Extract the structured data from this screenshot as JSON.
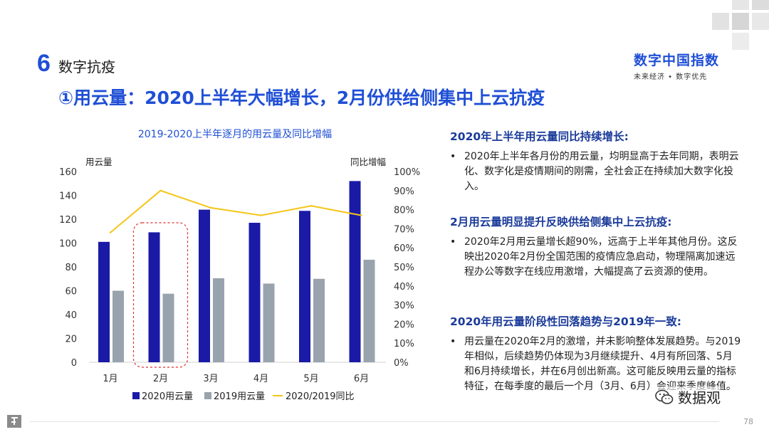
{
  "header": {
    "section_number": "6",
    "section_name": "数字抗疫",
    "main_title": "①用云量：2020上半年大幅增长，2月份供给侧集中上云抗疫"
  },
  "brand": {
    "title": "数字中国指数",
    "subtitle": "未来经济 • 数字优先"
  },
  "chart_data": {
    "type": "bar",
    "title": "2019-2020上半年逐月的用云量及同比增幅",
    "categories": [
      "1月",
      "2月",
      "3月",
      "4月",
      "5月",
      "6月"
    ],
    "y_left": {
      "label": "用云量",
      "range": [
        0,
        160
      ],
      "ticks": [
        "0",
        "20",
        "40",
        "60",
        "80",
        "100",
        "120",
        "140",
        "160"
      ]
    },
    "y_right": {
      "label": "同比增幅",
      "range": [
        0,
        100
      ],
      "ticks": [
        "0%",
        "10%",
        "20%",
        "30%",
        "40%",
        "50%",
        "60%",
        "70%",
        "80%",
        "90%",
        "100%"
      ]
    },
    "series": [
      {
        "name": "2020用云量",
        "type": "bar",
        "axis": "left",
        "color": "#1a1aa6",
        "values": [
          101,
          109,
          128,
          117,
          127,
          152
        ]
      },
      {
        "name": "2019用云量",
        "type": "bar",
        "axis": "left",
        "color": "#99a3ad",
        "values": [
          60,
          57.5,
          70.5,
          66,
          70,
          86
        ]
      },
      {
        "name": "2020/2019同比",
        "type": "line",
        "axis": "right",
        "color": "#f5c518",
        "values": [
          68,
          90,
          81,
          77,
          82,
          77
        ]
      }
    ],
    "highlight_category": "2月",
    "highlight_color": "#e0302d",
    "grid": false,
    "legend": "bottom"
  },
  "panel": {
    "blocks": [
      {
        "heading": "2020年上半年用云量同比持续增长:",
        "bullet": "•",
        "text": "2020年上半年各月份的用云量，均明显高于去年同期，表明云化、数字化是疫情期间的刚需，全社会正在持续加大数字化投入。"
      },
      {
        "heading": "2月用云量明显提升反映供给侧集中上云抗疫:",
        "bullet": "•",
        "text": "2020年2月用云量增长超90%，远高于上半年其他月份。这反映出2020年2月份全国范围的疫情应急启动，物理隔离加速远程办公等数字在线应用激增，大幅提高了云资源的使用。"
      },
      {
        "heading": "2020年用云量阶段性回落趋势与2019年一致:",
        "bullet": "•",
        "text": "用云量在2020年2月的激增，并未影响整体发展趋势。与2019年相似，后续趋势仍体现为3月继续提升、4月有所回落、5月和6月持续增长，并在6月创出新高。这可能反映用云量的指标特征，在每季度的最后一个月（3月、6月）会迎来季度峰值。"
      }
    ]
  },
  "watermark": {
    "text": "数据观"
  },
  "footer": {
    "page_number": "78"
  }
}
